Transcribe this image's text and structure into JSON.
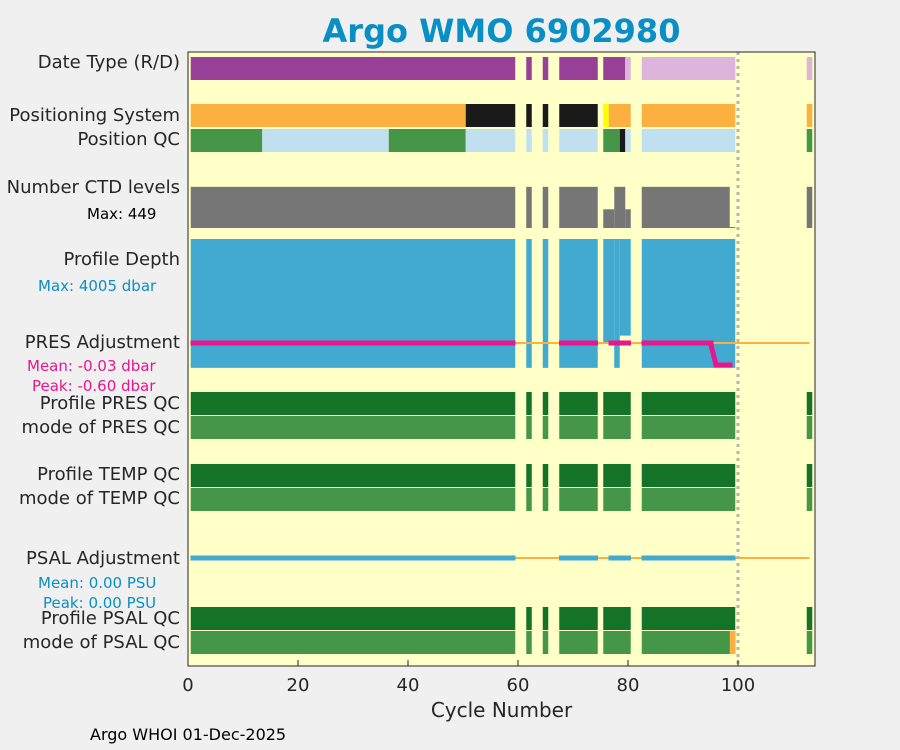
{
  "title": "Argo WMO 6902980",
  "footer": "Argo WHOI 01-Dec-2025",
  "rows": {
    "date_type": "Date Type (R/D)",
    "positioning": "Positioning System",
    "position_qc": "Position QC",
    "ctd_levels": "Number CTD levels",
    "ctd_max": "Max: 449",
    "profile_depth": "Profile Depth",
    "depth_max": "Max: 4005 dbar",
    "pres_adj": "PRES Adjustment",
    "pres_mean": "Mean: -0.03 dbar",
    "pres_peak": "Peak: -0.60 dbar",
    "profile_pres_qc": "Profile PRES QC",
    "mode_pres_qc": "mode of PRES QC",
    "profile_temp_qc": "Profile TEMP QC",
    "mode_temp_qc": "mode of TEMP QC",
    "psal_adj": "PSAL Adjustment",
    "psal_mean": "Mean: 0.00 PSU",
    "psal_peak": "Peak: 0.00 PSU",
    "profile_psal_qc": "Profile PSAL QC",
    "mode_psal_qc": "mode of PSAL QC"
  },
  "colors": {
    "background": "#ffffc8",
    "realtime": "#983f98",
    "delayed": "#dcb4dc",
    "gps": "#fbb040",
    "argos": "#1a1a1a",
    "other": "#ffff00",
    "qc_good": "#46964a",
    "qc_bad": "#1a1a1a",
    "qc_interp": "#c0e0f0",
    "qc_profile_good": "#157327",
    "ctd": "#767676",
    "depth": "#42aad1",
    "pres_adj": "#e8168c",
    "psal_adj": "#42aad1",
    "zero_line": "#fbb040",
    "cutoff": "#b4b4b4",
    "qc_mode_questionable": "#fbb040"
  },
  "chart_data": {
    "type": "table",
    "title": "Argo WMO 6902980",
    "xlabel": "Cycle Number",
    "xlim": [
      0,
      114
    ],
    "xticks": [
      0,
      20,
      40,
      60,
      80,
      100
    ],
    "cutoff_cycle": 100,
    "cycles": "1-59, 62, 65, 68-74, 76-80, 83-99, 113",
    "date_type": [
      {
        "from": 1,
        "to": 59,
        "mode": "realtime"
      },
      {
        "from": 62,
        "to": 62,
        "mode": "realtime"
      },
      {
        "from": 65,
        "to": 65,
        "mode": "realtime"
      },
      {
        "from": 68,
        "to": 74,
        "mode": "realtime"
      },
      {
        "from": 76,
        "to": 79,
        "mode": "realtime"
      },
      {
        "from": 80,
        "to": 80,
        "mode": "delayed"
      },
      {
        "from": 83,
        "to": 99,
        "mode": "delayed"
      },
      {
        "from": 113,
        "to": 113,
        "mode": "delayed"
      }
    ],
    "positioning_system": [
      {
        "from": 1,
        "to": 50,
        "mode": "gps"
      },
      {
        "from": 51,
        "to": 59,
        "mode": "argos"
      },
      {
        "from": 62,
        "to": 62,
        "mode": "argos"
      },
      {
        "from": 65,
        "to": 65,
        "mode": "argos"
      },
      {
        "from": 68,
        "to": 74,
        "mode": "argos"
      },
      {
        "from": 76,
        "to": 76,
        "mode": "other"
      },
      {
        "from": 77,
        "to": 80,
        "mode": "gps"
      },
      {
        "from": 83,
        "to": 99,
        "mode": "gps"
      },
      {
        "from": 113,
        "to": 113,
        "mode": "gps"
      }
    ],
    "position_qc": [
      {
        "from": 1,
        "to": 13,
        "mode": "qc_good"
      },
      {
        "from": 14,
        "to": 36,
        "mode": "qc_interp"
      },
      {
        "from": 37,
        "to": 50,
        "mode": "qc_good"
      },
      {
        "from": 51,
        "to": 59,
        "mode": "qc_interp"
      },
      {
        "from": 62,
        "to": 62,
        "mode": "qc_interp"
      },
      {
        "from": 65,
        "to": 65,
        "mode": "qc_interp"
      },
      {
        "from": 68,
        "to": 74,
        "mode": "qc_interp"
      },
      {
        "from": 76,
        "to": 78,
        "mode": "qc_good"
      },
      {
        "from": 79,
        "to": 79,
        "mode": "qc_bad"
      },
      {
        "from": 80,
        "to": 80,
        "mode": "qc_interp"
      },
      {
        "from": 83,
        "to": 99,
        "mode": "qc_interp"
      },
      {
        "from": 113,
        "to": 113,
        "mode": "qc_good"
      }
    ],
    "ctd_levels": {
      "max": 449,
      "segments": [
        {
          "from": 1,
          "to": 59,
          "value": 440
        },
        {
          "from": 62,
          "to": 62,
          "value": 440
        },
        {
          "from": 65,
          "to": 65,
          "value": 440
        },
        {
          "from": 68,
          "to": 74,
          "value": 440
        },
        {
          "from": 76,
          "to": 77,
          "value": 200
        },
        {
          "from": 78,
          "to": 79,
          "value": 440
        },
        {
          "from": 80,
          "to": 80,
          "value": 200
        },
        {
          "from": 83,
          "to": 98,
          "value": 440
        },
        {
          "from": 99,
          "to": 99,
          "value": 10
        },
        {
          "from": 113,
          "to": 113,
          "value": 440
        }
      ]
    },
    "profile_depth": {
      "max": 4005,
      "segments": [
        {
          "from": 1,
          "to": 59,
          "value": 4000
        },
        {
          "from": 62,
          "to": 62,
          "value": 4000
        },
        {
          "from": 65,
          "to": 65,
          "value": 4000
        },
        {
          "from": 68,
          "to": 74,
          "value": 4000
        },
        {
          "from": 76,
          "to": 77,
          "value": 3200
        },
        {
          "from": 78,
          "to": 78,
          "value": 4000
        },
        {
          "from": 79,
          "to": 80,
          "value": 3000
        },
        {
          "from": 83,
          "to": 99,
          "value": 4000
        }
      ]
    },
    "pres_adjustment": {
      "mean": -0.03,
      "peak": -0.6,
      "series": [
        {
          "cycle": 1,
          "value": 0
        },
        {
          "cycle": 59,
          "value": 0
        },
        {
          "cycle": 68,
          "value": 0
        },
        {
          "cycle": 74,
          "value": 0
        },
        {
          "cycle": 77,
          "value": 0
        },
        {
          "cycle": 80,
          "value": 0
        },
        {
          "cycle": 83,
          "value": 0
        },
        {
          "cycle": 95,
          "value": 0
        },
        {
          "cycle": 96,
          "value": -0.6
        },
        {
          "cycle": 99,
          "value": -0.6
        }
      ]
    },
    "profile_pres_qc": [
      {
        "from": 1,
        "to": 59
      },
      {
        "from": 62,
        "to": 62
      },
      {
        "from": 65,
        "to": 65
      },
      {
        "from": 68,
        "to": 74
      },
      {
        "from": 76,
        "to": 80
      },
      {
        "from": 83,
        "to": 99
      },
      {
        "from": 113,
        "to": 113
      }
    ],
    "mode_pres_qc": [
      {
        "from": 1,
        "to": 59
      },
      {
        "from": 62,
        "to": 62
      },
      {
        "from": 65,
        "to": 65
      },
      {
        "from": 68,
        "to": 74
      },
      {
        "from": 76,
        "to": 80
      },
      {
        "from": 83,
        "to": 99
      },
      {
        "from": 113,
        "to": 113
      }
    ],
    "psal_adjustment": {
      "mean": 0.0,
      "peak": 0.0,
      "series": [
        {
          "cycle": 1,
          "value": 0
        },
        {
          "cycle": 59,
          "value": 0
        },
        {
          "cycle": 68,
          "value": 0
        },
        {
          "cycle": 74,
          "value": 0
        },
        {
          "cycle": 77,
          "value": 0
        },
        {
          "cycle": 80,
          "value": 0
        },
        {
          "cycle": 83,
          "value": 0
        },
        {
          "cycle": 99,
          "value": 0
        }
      ]
    },
    "mode_psal_qc_questionable_cycles": [
      99
    ]
  }
}
